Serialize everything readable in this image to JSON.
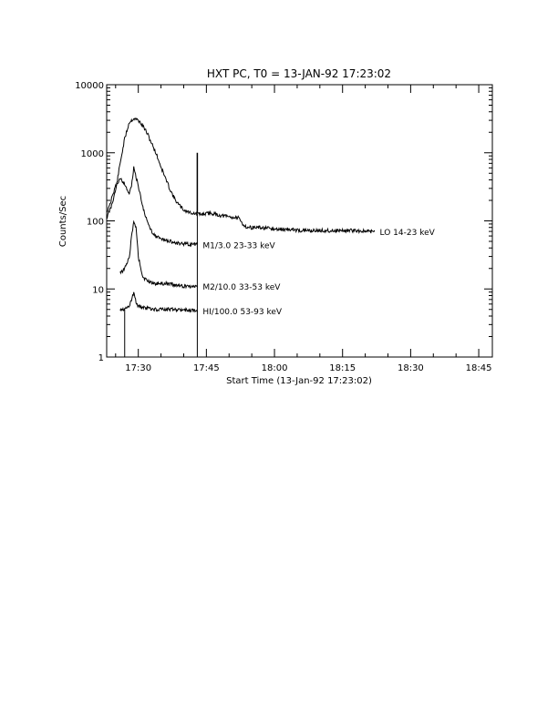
{
  "chart_data": {
    "type": "line",
    "title": "HXT PC,  T0 = 13-JAN-92  17:23:02",
    "xlabel": "Start Time (13-Jan-92 17:23:02)",
    "ylabel": "Counts/Sec",
    "xlim": [
      "17:23:02",
      "18:48:00"
    ],
    "ylim": [
      1,
      10000
    ],
    "yscale": "log",
    "grid": false,
    "x_ticks": [
      "17:30",
      "17:45",
      "18:00",
      "18:15",
      "18:30",
      "18:45"
    ],
    "y_ticks": [
      "1",
      "10",
      "100",
      "1000",
      "10000"
    ],
    "series": [
      {
        "name": "LO 14-23 keV",
        "x": [
          "17:23:02",
          "17:24:00",
          "17:25:00",
          "17:26:00",
          "17:27:00",
          "17:28:00",
          "17:29:00",
          "17:30:00",
          "17:31:00",
          "17:32:00",
          "17:33:00",
          "17:34:00",
          "17:35:00",
          "17:36:00",
          "17:37:00",
          "17:38:00",
          "17:39:00",
          "17:40:00",
          "17:41:00",
          "17:42:00",
          "17:43:00",
          "17:44:00",
          "17:46:00",
          "17:48:00",
          "17:50:00",
          "17:52:00",
          "17:53:00",
          "17:54:00",
          "17:56:00",
          "17:58:00",
          "18:00:00",
          "18:03:00",
          "18:06:00",
          "18:09:00",
          "18:12:00",
          "18:14:00",
          "18:15:00",
          "18:18:00",
          "18:20:00",
          "18:22:00"
        ],
        "values": [
          110,
          160,
          280,
          700,
          1600,
          2800,
          3200,
          3000,
          2500,
          1900,
          1350,
          950,
          620,
          420,
          290,
          210,
          170,
          145,
          135,
          130,
          125,
          125,
          130,
          120,
          115,
          110,
          90,
          80,
          80,
          78,
          75,
          75,
          72,
          72,
          72,
          72,
          72,
          72,
          70,
          70
        ]
      },
      {
        "name": "M1/3.0 23-33 keV",
        "x": [
          "17:23:02",
          "17:24:00",
          "17:25:00",
          "17:26:00",
          "17:27:00",
          "17:28:00",
          "17:28:30",
          "17:29:00",
          "17:30:00",
          "17:31:00",
          "17:32:00",
          "17:33:00",
          "17:34:00",
          "17:36:00",
          "17:38:00",
          "17:40:00",
          "17:42:00",
          "17:43:00"
        ],
        "values": [
          130,
          200,
          320,
          430,
          350,
          250,
          320,
          600,
          330,
          160,
          95,
          70,
          58,
          52,
          48,
          46,
          45,
          45
        ]
      },
      {
        "name": "M2/10.0 33-53 keV",
        "x": [
          "17:26:00",
          "17:27:00",
          "17:28:00",
          "17:28:30",
          "17:29:00",
          "17:29:30",
          "17:30:00",
          "17:31:00",
          "17:32:00",
          "17:34:00",
          "17:36:00",
          "17:38:00",
          "17:40:00",
          "17:43:00"
        ],
        "values": [
          17,
          20,
          28,
          60,
          95,
          80,
          30,
          15,
          13,
          12,
          12,
          11.5,
          11,
          11
        ]
      },
      {
        "name": "HI/100.0 53-93 keV",
        "x": [
          "17:26:00",
          "17:27:00",
          "17:28:00",
          "17:28:30",
          "17:29:00",
          "17:29:30",
          "17:30:00",
          "17:31:00",
          "17:32:00",
          "17:34:00",
          "17:38:00",
          "17:43:00"
        ],
        "values": [
          5,
          5.1,
          5.6,
          7,
          8.5,
          6.5,
          5.5,
          5.3,
          5.2,
          5,
          5,
          4.8
        ]
      }
    ]
  }
}
